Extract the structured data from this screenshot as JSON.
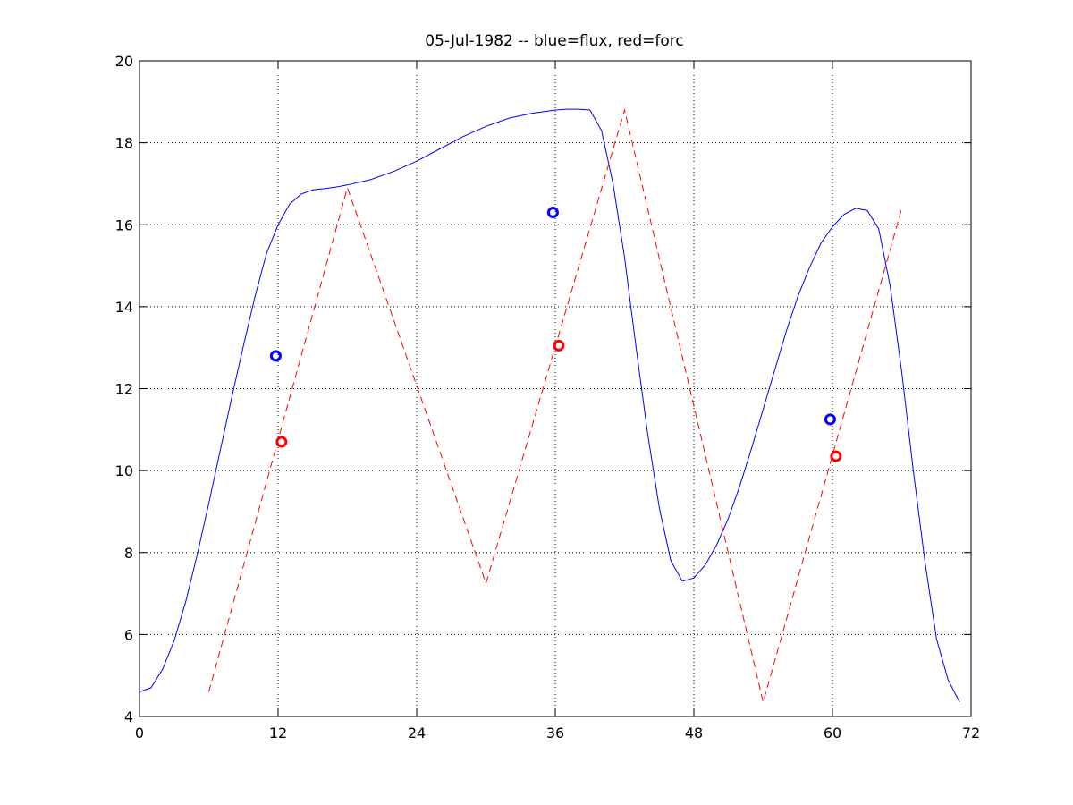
{
  "chart_data": {
    "type": "line",
    "title": "05-Jul-1982 -- blue=flux, red=forc",
    "xlabel": "",
    "ylabel": "",
    "xlim": [
      0,
      72
    ],
    "ylim": [
      4,
      20
    ],
    "xticks": [
      0,
      12,
      24,
      36,
      48,
      60,
      72
    ],
    "yticks": [
      4,
      6,
      8,
      10,
      12,
      14,
      16,
      18,
      20
    ],
    "grid": true,
    "series": [
      {
        "name": "flux",
        "color": "#0000ff",
        "style": "solid",
        "x": [
          0,
          1,
          2,
          3,
          4,
          5,
          6,
          7,
          8,
          9,
          10,
          11,
          12,
          13,
          14,
          15,
          16,
          17,
          18,
          20,
          22,
          24,
          26,
          28,
          30,
          32,
          34,
          36,
          37,
          38,
          39,
          40,
          41,
          42,
          43,
          44,
          45,
          46,
          47,
          48,
          49,
          50,
          51,
          52,
          53,
          54,
          55,
          56,
          57,
          58,
          59,
          60,
          61,
          62,
          63,
          64,
          65,
          66,
          67,
          68,
          69,
          70,
          71
        ],
        "y": [
          4.6,
          4.7,
          5.15,
          5.85,
          6.8,
          7.95,
          9.2,
          10.5,
          11.8,
          13.05,
          14.25,
          15.3,
          16.0,
          16.5,
          16.75,
          16.85,
          16.88,
          16.92,
          16.97,
          17.1,
          17.3,
          17.55,
          17.85,
          18.15,
          18.4,
          18.6,
          18.72,
          18.8,
          18.82,
          18.82,
          18.8,
          18.3,
          17.0,
          15.2,
          13.0,
          10.9,
          9.1,
          7.8,
          7.3,
          7.38,
          7.7,
          8.2,
          8.85,
          9.65,
          10.55,
          11.5,
          12.45,
          13.4,
          14.25,
          14.95,
          15.55,
          15.95,
          16.25,
          16.4,
          16.35,
          15.9,
          14.5,
          12.4,
          10.0,
          7.8,
          5.9,
          4.9,
          4.35
        ]
      },
      {
        "name": "forc",
        "color": "#ff0000",
        "style": "dashed",
        "x": [
          6,
          18,
          30,
          42,
          54,
          66
        ],
        "y": [
          4.6,
          16.9,
          7.25,
          18.8,
          4.35,
          16.4
        ]
      }
    ],
    "markers": [
      {
        "series": "flux",
        "color": "#0000ff",
        "x": [
          11.8,
          35.8,
          59.8
        ],
        "y": [
          12.8,
          16.3,
          11.25
        ]
      },
      {
        "series": "forc",
        "color": "#ff0000",
        "x": [
          12.3,
          36.3,
          60.3
        ],
        "y": [
          10.7,
          13.05,
          10.35
        ]
      }
    ]
  }
}
